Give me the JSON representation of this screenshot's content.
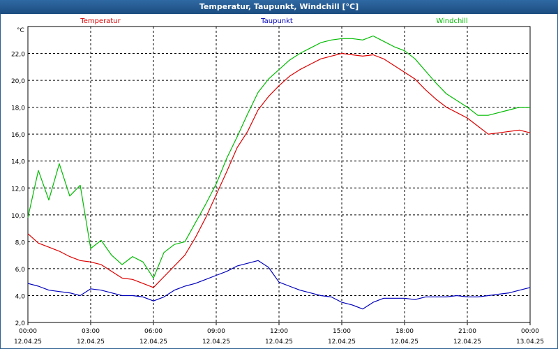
{
  "window": {
    "title": "Temperatur, Taupunkt, Windchill [°C]"
  },
  "colors": {
    "temperature": "#dd0000",
    "dewpoint": "#0000bb",
    "windchill": "#00bb00",
    "titlebar": "#1f5289"
  },
  "chart_data": {
    "type": "line",
    "title": "Temperatur, Taupunkt, Windchill [°C]",
    "y_unit": "°C",
    "ylim": [
      2.0,
      24.0
    ],
    "y_ticks": [
      "2,0",
      "4,0",
      "6,0",
      "8,0",
      "10,0",
      "12,0",
      "14,0",
      "16,0",
      "18,0",
      "20,0",
      "22,0"
    ],
    "x_ticks": [
      {
        "time": "00:00",
        "date": "12.04.25"
      },
      {
        "time": "03:00",
        "date": "12.04.25"
      },
      {
        "time": "06:00",
        "date": "12.04.25"
      },
      {
        "time": "09:00",
        "date": "12.04.25"
      },
      {
        "time": "12:00",
        "date": "12.04.25"
      },
      {
        "time": "15:00",
        "date": "12.04.25"
      },
      {
        "time": "18:00",
        "date": "12.04.25"
      },
      {
        "time": "21:00",
        "date": "12.04.25"
      },
      {
        "time": "00:00",
        "date": "13.04.25"
      }
    ],
    "x_hours": [
      0,
      0.5,
      1,
      1.5,
      2,
      2.5,
      3,
      3.5,
      4,
      4.5,
      5,
      5.5,
      6,
      6.5,
      7,
      7.5,
      8,
      8.5,
      9,
      9.5,
      10,
      10.5,
      11,
      11.5,
      12,
      12.5,
      13,
      13.5,
      14,
      14.5,
      15,
      15.5,
      16,
      16.5,
      17,
      17.5,
      18,
      18.5,
      19,
      19.5,
      20,
      20.5,
      21,
      21.5,
      22,
      22.5,
      23,
      23.5,
      24
    ],
    "grid": true,
    "legend_position": "top",
    "series": [
      {
        "name": "Temperatur",
        "color": "#dd0000",
        "values": [
          8.6,
          7.9,
          7.6,
          7.3,
          6.9,
          6.6,
          6.5,
          6.3,
          5.8,
          5.3,
          5.2,
          4.9,
          4.6,
          5.4,
          6.2,
          7.0,
          8.3,
          9.8,
          11.5,
          13.2,
          15.0,
          16.2,
          17.8,
          18.8,
          19.6,
          20.3,
          20.8,
          21.2,
          21.6,
          21.8,
          22.0,
          21.9,
          21.8,
          21.9,
          21.6,
          21.1,
          20.6,
          20.1,
          19.3,
          18.6,
          18.0,
          17.6,
          17.2,
          16.6,
          16.0,
          16.1,
          16.2,
          16.3,
          16.1
        ]
      },
      {
        "name": "Taupunkt",
        "color": "#0000bb",
        "values": [
          4.9,
          4.7,
          4.4,
          4.3,
          4.2,
          4.0,
          4.5,
          4.4,
          4.2,
          4.0,
          4.0,
          3.9,
          3.6,
          3.9,
          4.4,
          4.7,
          4.9,
          5.2,
          5.5,
          5.8,
          6.2,
          6.4,
          6.6,
          6.1,
          5.0,
          4.7,
          4.4,
          4.2,
          4.0,
          3.9,
          3.5,
          3.3,
          3.0,
          3.5,
          3.8,
          3.8,
          3.8,
          3.7,
          3.9,
          3.9,
          3.9,
          4.0,
          3.9,
          3.9,
          4.0,
          4.1,
          4.2,
          4.4,
          4.6
        ]
      },
      {
        "name": "Windchill",
        "color": "#00bb00",
        "values": [
          9.8,
          13.3,
          11.1,
          13.8,
          11.4,
          12.2,
          7.5,
          8.1,
          7.0,
          6.3,
          6.9,
          6.5,
          5.3,
          7.2,
          7.8,
          8.0,
          9.4,
          10.8,
          12.3,
          14.2,
          15.8,
          17.5,
          19.1,
          20.1,
          20.8,
          21.5,
          22.0,
          22.4,
          22.8,
          23.0,
          23.1,
          23.1,
          23.0,
          23.3,
          22.9,
          22.5,
          22.2,
          21.6,
          20.7,
          19.8,
          19.0,
          18.5,
          18.0,
          17.4,
          17.4,
          17.6,
          17.8,
          18.0,
          18.0
        ]
      }
    ]
  }
}
